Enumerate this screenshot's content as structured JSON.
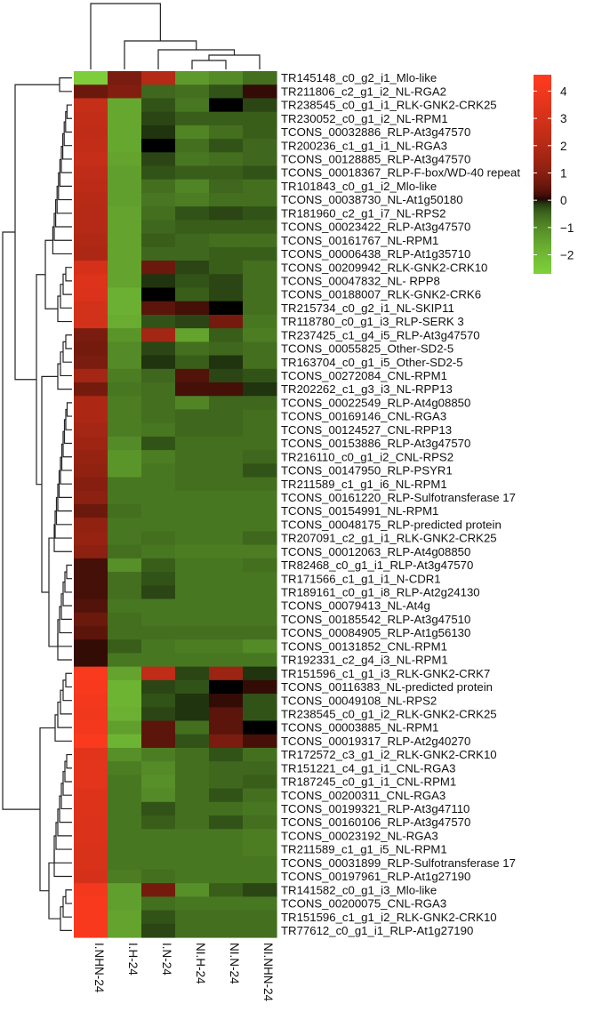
{
  "chart_data": {
    "type": "heatmap",
    "columns": [
      "I.NHN-24",
      "I.H-24",
      "I.N-24",
      "NI.H-24",
      "NI.N-24",
      "NI.NHN-24"
    ],
    "rows": [
      "TR145148_c0_g2_i1_Mlo-like",
      "TR211806_c2_g1_i2_NL-RGA2",
      "TR238545_c0_g1_i1_RLK-GNK2-CRK25",
      "TR230052_c0_g1_i2_NL-RPM1",
      "TCONS_00032886_RLP-At3g47570",
      "TR200236_c1_g1_i1_NL-RGA3",
      "TCONS_00128885_RLP-At3g47570",
      "TCONS_00018367_RLP-F-box/WD-40 repeat",
      "TR101843_c0_g1_i2_Mlo-like",
      "TCONS_00038730_NL-At1g50180",
      "TR181960_c2_g1_i7_NL-RPS2",
      "TCONS_00023422_RLP-At3g47570",
      "TCONS_00161767_NL-RPM1",
      "TCONS_00006438_RLP-At1g35710",
      "TCONS_00209942_RLK-GNK2-CRK10",
      "TCONS_00047832_NL- RPP8",
      "TCONS_00188007_RLK-GNK2-CRK6",
      "TR215734_c0_g2_i1_NL-SKIP11",
      "TR118780_c0_g1_i3_RLP-SERK 3",
      "TR237425_c1_g4_i5_RLP-At3g47570",
      "TCONS_00055825_Other-SD2-5",
      "TR163704_c0_g1_i5_Other-SD2-5",
      "TCONS_00272084_CNL-RPM1",
      "TR202262_c1_g3_i3_NL-RPP13",
      "TCONS_00022549_RLP-At4g08850",
      "TCONS_00169146_CNL-RGA3",
      "TCONS_00124527_CNL-RPP13",
      "TCONS_00153886_RLP-At3g47570",
      "TR216110_c0_g1_i2_CNL-RPS2",
      "TCONS_00147950_RLP-PSYR1",
      "TR211589_c1_g1_i6_NL-RPM1",
      "TCONS_00161220_RLP-Sulfotransferase 17",
      "TCONS_00154991_NL-RPM1",
      "TCONS_00048175_RLP-predicted protein",
      "TR207091_c2_g1_i1_RLK-GNK2-CRK25",
      "TCONS_00012063_RLP-At4g08850",
      "TR82468_c0_g1_i1_RLP-At3g47570",
      "TR171566_c1_g1_i1_N-CDR1",
      "TR189161_c0_g1_i8_RLP-At2g24130",
      "TCONS_00079413_NL-At4g",
      "TCONS_00185542_RLP-At3g47510",
      "TCONS_00084905_RLP-At1g56130",
      "TCONS_00131852_CNL-RPM1",
      "TR192331_c2_g4_i3_NL-RPM1",
      "TR151596_c1_g1_i3_RLK-GNK2-CRK7",
      "TCONS_00116383_NL-predicted protein",
      "TCONS_00049108_NL-RPS2",
      "TR238545_c0_g1_i2_RLK-GNK2-CRK25",
      "TCONS_00003885_NL-RPM1",
      "TCONS_00019317_RLP-At2g40270",
      "TR172572_c3_g1_i2_RLK-GNK2-CRK10",
      "TR151221_c4_g1_i1_CNL-RGA3",
      "TR187245_c0_g1_i1_CNL-RPM1",
      "TCONS_00200311_CNL-RGA3",
      "TCONS_00199321_RLP-At3g47110",
      "TCONS_00160106_RLP-At3g47570",
      "TCONS_00023192_NL-RGA3",
      "TR211589_c1_g1_i5_NL-RPM1",
      "TCONS_00031899_RLP-Sulfotransferase 17",
      "TCONS_00197961_RLP-At1g27190",
      "TR141582_c0_g1_i3_Mlo-like",
      "TCONS_00200075_CNL-RGA3",
      "TR151596_c1_g1_i2_RLK-GNK2-CRK10",
      "TR77612_c0_g1_i1_RLP-At1g27190"
    ],
    "values": [
      [
        -2.6,
        0.8,
        2.0,
        -1.3,
        -1.0,
        -0.6
      ],
      [
        0.6,
        0.9,
        -0.5,
        -0.6,
        -0.3,
        0.1
      ],
      [
        2.5,
        -1.6,
        -0.3,
        -0.7,
        0.0,
        -0.2
      ],
      [
        2.4,
        -1.6,
        -0.2,
        -0.4,
        -0.4,
        -0.4
      ],
      [
        2.3,
        -1.6,
        -0.1,
        -0.9,
        -0.6,
        -0.4
      ],
      [
        2.4,
        -1.6,
        0.0,
        -0.6,
        -0.3,
        -0.5
      ],
      [
        2.5,
        -1.5,
        -0.2,
        -0.7,
        -0.6,
        -0.5
      ],
      [
        2.3,
        -1.4,
        -0.3,
        -0.4,
        -0.4,
        -0.3
      ],
      [
        2.2,
        -1.4,
        -0.6,
        -0.9,
        -0.5,
        -0.6
      ],
      [
        2.1,
        -1.4,
        -0.7,
        -0.8,
        -0.6,
        -0.6
      ],
      [
        2.0,
        -1.5,
        -0.6,
        -0.3,
        -0.2,
        -0.3
      ],
      [
        2.0,
        -1.5,
        -0.5,
        -0.4,
        -0.4,
        -0.4
      ],
      [
        1.9,
        -1.5,
        -0.4,
        -0.5,
        -0.6,
        -0.6
      ],
      [
        1.8,
        -1.5,
        -0.5,
        -0.5,
        -0.4,
        -0.4
      ],
      [
        3.0,
        -1.5,
        0.6,
        -0.2,
        -0.4,
        -0.6
      ],
      [
        3.3,
        -1.5,
        -0.1,
        -0.3,
        -0.2,
        -0.6
      ],
      [
        3.2,
        -1.8,
        0.0,
        -0.4,
        -0.2,
        -0.6
      ],
      [
        2.9,
        -1.8,
        0.4,
        0.2,
        0.0,
        -0.6
      ],
      [
        2.9,
        -1.7,
        -0.3,
        -0.2,
        0.7,
        -0.7
      ],
      [
        0.8,
        -1.2,
        1.6,
        -1.5,
        -0.4,
        -0.8
      ],
      [
        0.7,
        -1.0,
        -0.2,
        -0.6,
        -0.5,
        -0.6
      ],
      [
        0.8,
        -1.0,
        -0.1,
        -0.4,
        -0.1,
        -0.6
      ],
      [
        1.6,
        -0.8,
        -0.5,
        0.3,
        -0.2,
        -0.3
      ],
      [
        0.7,
        -0.7,
        -0.6,
        0.2,
        0.2,
        -0.1
      ],
      [
        1.8,
        -0.8,
        -0.6,
        -0.9,
        -0.5,
        -0.5
      ],
      [
        1.8,
        -0.8,
        -0.6,
        -0.5,
        -0.5,
        -0.6
      ],
      [
        1.6,
        -0.8,
        -0.7,
        -0.5,
        -0.5,
        -0.6
      ],
      [
        1.5,
        -1.0,
        -0.3,
        -0.6,
        -0.6,
        -0.6
      ],
      [
        1.3,
        -1.2,
        -0.8,
        -0.6,
        -0.6,
        -0.5
      ],
      [
        1.2,
        -1.2,
        -0.7,
        -0.6,
        -0.6,
        -0.3
      ],
      [
        1.0,
        -0.7,
        -0.7,
        -0.6,
        -0.6,
        -0.6
      ],
      [
        1.1,
        -0.7,
        -0.7,
        -0.7,
        -0.7,
        -0.7
      ],
      [
        0.6,
        -0.6,
        -0.7,
        -0.7,
        -0.7,
        -0.7
      ],
      [
        1.2,
        -0.7,
        -0.7,
        -0.7,
        -0.7,
        -0.7
      ],
      [
        1.3,
        -0.7,
        -0.6,
        -0.7,
        -0.7,
        -0.5
      ],
      [
        1.1,
        -0.6,
        -0.7,
        -0.8,
        -0.8,
        -0.8
      ],
      [
        0.2,
        -1.1,
        -0.4,
        -0.7,
        -0.7,
        -0.6
      ],
      [
        0.2,
        -0.6,
        -0.3,
        -0.7,
        -0.7,
        -0.7
      ],
      [
        0.2,
        -0.6,
        -0.2,
        -0.7,
        -0.7,
        -0.7
      ],
      [
        0.3,
        -0.7,
        -0.7,
        -0.7,
        -0.7,
        -0.7
      ],
      [
        0.6,
        -0.6,
        -0.7,
        -0.7,
        -0.7,
        -0.7
      ],
      [
        0.4,
        -0.6,
        -0.6,
        -0.6,
        -0.6,
        -0.6
      ],
      [
        0.1,
        -0.4,
        -0.7,
        -0.8,
        -0.8,
        -1.0
      ],
      [
        0.1,
        -0.7,
        -0.7,
        -0.7,
        -0.7,
        -0.7
      ],
      [
        4.4,
        -1.5,
        2.3,
        -0.2,
        1.4,
        -0.1
      ],
      [
        4.3,
        -1.9,
        -0.2,
        -0.3,
        0.0,
        0.1
      ],
      [
        4.1,
        -1.9,
        -0.3,
        -0.1,
        0.1,
        -0.3
      ],
      [
        4.0,
        -1.8,
        -0.2,
        -0.1,
        0.4,
        -0.3
      ],
      [
        4.1,
        -1.4,
        0.4,
        -0.6,
        0.4,
        0.0
      ],
      [
        4.4,
        -1.9,
        0.4,
        -0.3,
        0.8,
        0.2
      ],
      [
        3.4,
        -1.1,
        -0.8,
        -0.6,
        -0.3,
        -0.6
      ],
      [
        3.5,
        -0.8,
        -1.0,
        -0.6,
        -0.5,
        -0.5
      ],
      [
        3.5,
        -0.7,
        -1.1,
        -0.6,
        -0.5,
        -0.4
      ],
      [
        3.3,
        -0.7,
        -1.0,
        -0.6,
        -0.3,
        -0.6
      ],
      [
        3.3,
        -0.7,
        -0.3,
        -0.6,
        -0.6,
        -0.7
      ],
      [
        3.2,
        -0.7,
        -0.4,
        -0.6,
        -0.3,
        -0.6
      ],
      [
        3.2,
        -0.7,
        -0.7,
        -0.7,
        -0.7,
        -0.8
      ],
      [
        3.1,
        -0.7,
        -0.7,
        -0.7,
        -0.7,
        -0.8
      ],
      [
        3.1,
        -0.7,
        -0.7,
        -0.7,
        -0.7,
        -0.7
      ],
      [
        3.0,
        -0.8,
        -0.6,
        -0.7,
        -0.7,
        -0.7
      ],
      [
        4.1,
        -1.4,
        0.7,
        -1.1,
        -0.4,
        -0.2
      ],
      [
        4.3,
        -1.4,
        -0.6,
        -0.7,
        -0.7,
        -0.7
      ],
      [
        4.3,
        -1.5,
        -0.3,
        -0.6,
        -0.6,
        -0.6
      ],
      [
        4.3,
        -1.5,
        -0.2,
        -0.6,
        -0.6,
        -0.6
      ]
    ],
    "legend": {
      "ticks": [
        4,
        3,
        2,
        1,
        0,
        -1,
        -2
      ],
      "tick_labels": [
        "4",
        "3",
        "2",
        "1",
        "0",
        "−1",
        "−2"
      ],
      "range": [
        -2.7,
        4.6
      ],
      "colors": {
        "low": "#7fd13b",
        "mid": "#000000",
        "high": "#ff3b1f"
      }
    }
  }
}
